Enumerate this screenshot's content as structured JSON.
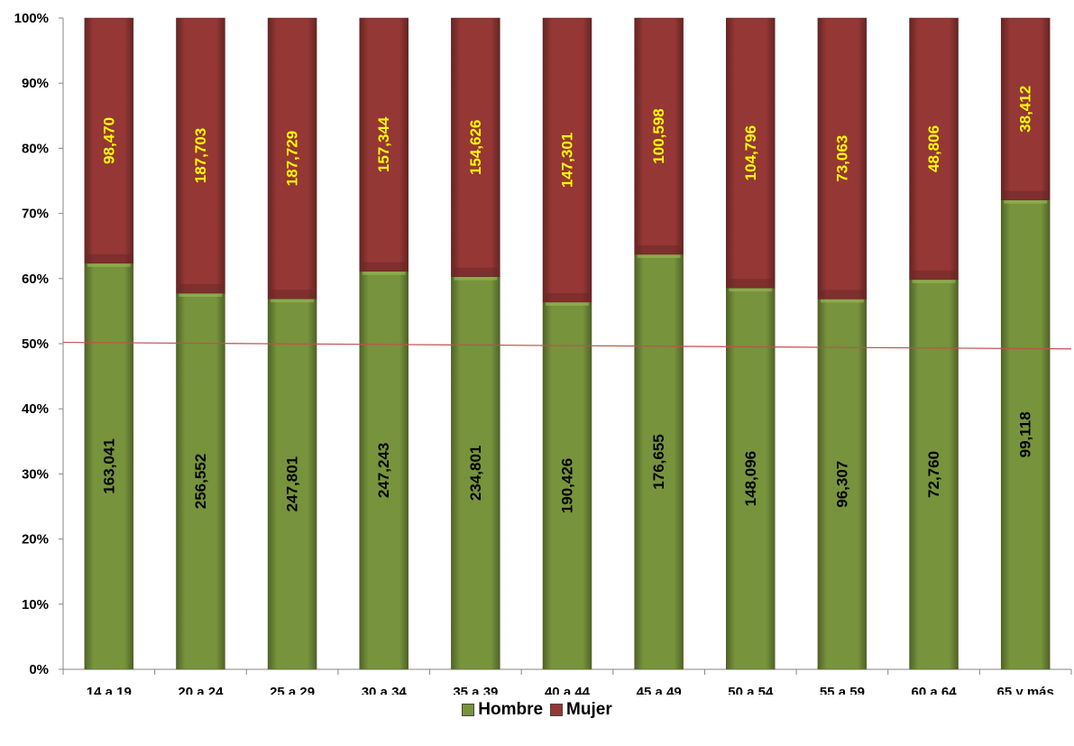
{
  "chart_data": {
    "type": "bar",
    "stacked": "percent",
    "categories": [
      "14 a 19",
      "20 a 24",
      "25 a 29",
      "30 a 34",
      "35 a 39",
      "40 a 44",
      "45 a 49",
      "50 a 54",
      "55 a 59",
      "60 a 64",
      "65  y más"
    ],
    "series": [
      {
        "name": "Hombre",
        "values": [
          163041,
          256552,
          247801,
          247243,
          234801,
          190426,
          176655,
          148096,
          96307,
          72760,
          99118
        ],
        "labels": [
          "163,041",
          "256,552",
          "247,801",
          "247,243",
          "234,801",
          "190,426",
          "176,655",
          "148,096",
          "96,307",
          "72,760",
          "99,118"
        ],
        "color": "#77933c",
        "label_color": "#000000"
      },
      {
        "name": "Mujer",
        "values": [
          98470,
          187703,
          187729,
          157344,
          154626,
          147301,
          100598,
          104796,
          73063,
          48806,
          38412
        ],
        "labels": [
          "98,470",
          "187,703",
          "187,729",
          "157,344",
          "154,626",
          "147,301",
          "100,598",
          "104,796",
          "73,063",
          "48,806",
          "38,412"
        ],
        "color": "#953735",
        "label_color": "#ffff00"
      }
    ],
    "yticks": [
      "0%",
      "10%",
      "20%",
      "30%",
      "40%",
      "50%",
      "60%",
      "70%",
      "80%",
      "90%",
      "100%"
    ],
    "ylim": [
      0,
      100
    ],
    "reference_line": {
      "from": 50.2,
      "to": 49.2,
      "color": "#c0504d"
    },
    "legend": "bottom",
    "grid": false,
    "title": "",
    "xlabel": "",
    "ylabel": ""
  }
}
